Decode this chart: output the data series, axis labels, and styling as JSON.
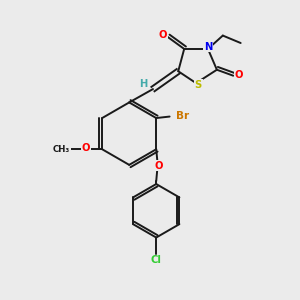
{
  "bg_color": "#ebebeb",
  "bond_color": "#1a1a1a",
  "bond_width": 1.4,
  "atom_colors": {
    "O": "#ff0000",
    "N": "#0000ee",
    "S": "#bbbb00",
    "Br": "#cc7700",
    "Cl": "#33cc33",
    "H": "#44aaaa",
    "C": "#1a1a1a"
  }
}
